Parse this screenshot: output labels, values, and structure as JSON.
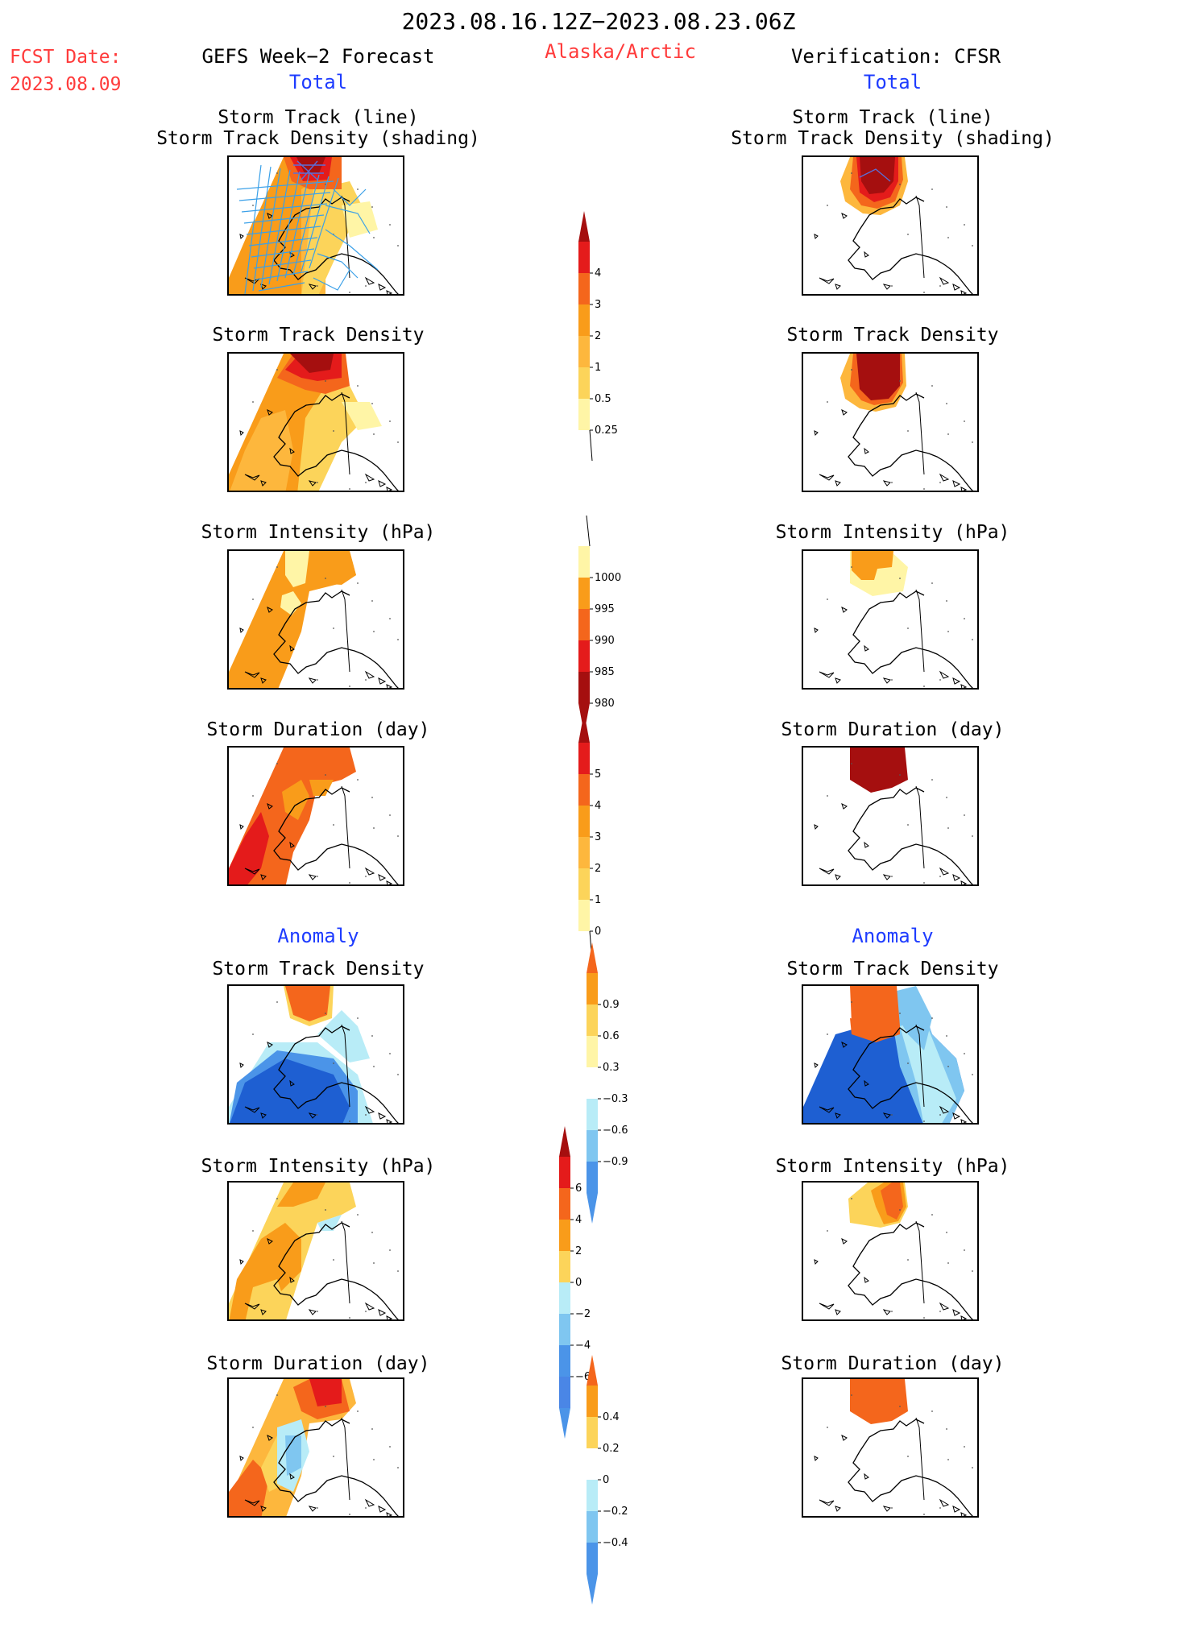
{
  "header": {
    "date_range": "2023.08.16.12Z−2023.08.23.06Z",
    "fcst_label": "FCST Date:",
    "fcst_date": "2023.08.09",
    "left_title": "GEFS Week−2 Forecast",
    "region": "Alaska/Arctic",
    "right_title": "Verification: CFSR",
    "total_left": "Total",
    "total_right": "Total",
    "anomaly_left": "Anomaly",
    "anomaly_right": "Anomaly"
  },
  "panel_titles": {
    "track_line": "Storm Track (line)",
    "track_shading": "Storm Track Density (shading)",
    "density": "Storm Track Density",
    "intensity": "Storm Intensity (hPa)",
    "duration": "Storm Duration (day)"
  },
  "colorbars": {
    "density_total": [
      "0.25",
      "0.5",
      "1",
      "2",
      "3",
      "4"
    ],
    "intensity_total": [
      "1000",
      "995",
      "990",
      "985",
      "980"
    ],
    "duration_total": [
      "0",
      "1",
      "2",
      "3",
      "4",
      "5"
    ],
    "density_anom": [
      "0.9",
      "0.6",
      "0.3",
      "−0.3",
      "−0.6",
      "−0.9"
    ],
    "intensity_anom": [
      "6",
      "4",
      "2",
      "0",
      "−2",
      "−4",
      "−6"
    ],
    "duration_anom": [
      "0.4",
      "0.2",
      "0",
      "−0.2",
      "−0.4"
    ]
  },
  "colors": {
    "ly": "#fff5a6",
    "y": "#fcd45a",
    "lo": "#fdb73d",
    "o": "#f99c1a",
    "do": "#f4661c",
    "r": "#e41b1b",
    "dr": "#a50f0f",
    "lb": "#b8ecf7",
    "mb": "#7fc6f0",
    "b": "#4b94e8",
    "db": "#1e5fd2",
    "track": "#3aa0e8",
    "track_dense": "#5b6fd8",
    "title_red": "#ff3b3b",
    "title_blue": "#1e3cff"
  }
}
